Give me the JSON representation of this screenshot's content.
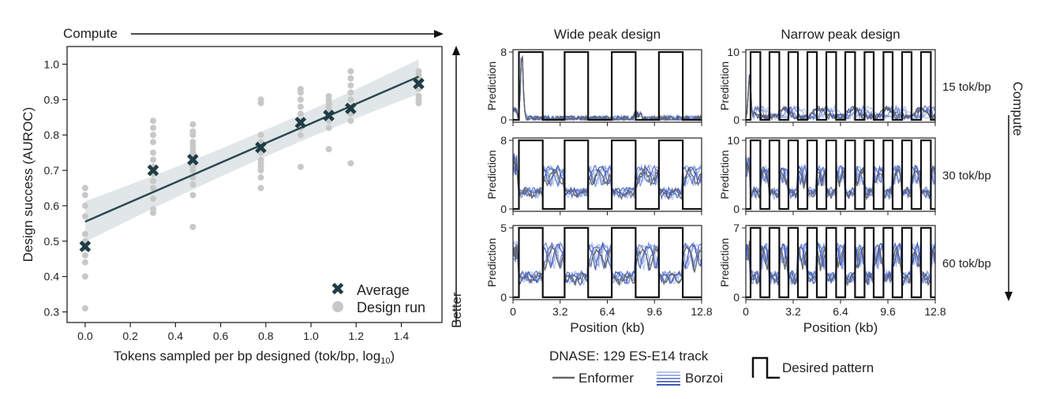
{
  "colors": {
    "average": "#1f3d45",
    "design_run": "#c8c8c8",
    "fit_line": "#2b4a52",
    "fit_band": "#d9e1e3",
    "enformer": "#666666",
    "borzoi": "#5b74c9",
    "desired": "#111111"
  },
  "annotations": {
    "compute_top": "Compute",
    "better": "Better",
    "compute_right": "Compute"
  },
  "chart_data": [
    {
      "type": "scatter",
      "title": "",
      "xlabel": "Tokens sampled per bp designed (tok/bp, log",
      "xlabel_sub": "10",
      "xlabel_end": ")",
      "ylabel": "Design success (AUROC)",
      "xlim": [
        -0.08,
        1.58
      ],
      "ylim": [
        0.27,
        1.05
      ],
      "xticks": [
        "0.0",
        "0.2",
        "0.4",
        "0.6",
        "0.8",
        "1.0",
        "1.2",
        "1.4"
      ],
      "xtick_values": [
        0.0,
        0.2,
        0.4,
        0.6,
        0.8,
        1.0,
        1.2,
        1.4
      ],
      "yticks": [
        "0.3",
        "0.4",
        "0.5",
        "0.6",
        "0.7",
        "0.8",
        "0.9",
        "1.0"
      ],
      "ytick_values": [
        0.3,
        0.4,
        0.5,
        0.6,
        0.7,
        0.8,
        0.9,
        1.0
      ],
      "legend_position": "bottom-right",
      "series": [
        {
          "name": "Average",
          "x": [
            0.0,
            0.301,
            0.477,
            0.778,
            0.954,
            1.079,
            1.176,
            1.477
          ],
          "y": [
            0.485,
            0.7,
            0.73,
            0.765,
            0.835,
            0.855,
            0.875,
            0.945
          ]
        },
        {
          "name": "Design run",
          "points": [
            [
              0.0,
              0.31
            ],
            [
              0.0,
              0.4
            ],
            [
              0.0,
              0.44
            ],
            [
              0.0,
              0.46
            ],
            [
              0.0,
              0.48
            ],
            [
              0.0,
              0.49
            ],
            [
              0.0,
              0.5
            ],
            [
              0.0,
              0.52
            ],
            [
              0.0,
              0.57
            ],
            [
              0.0,
              0.6
            ],
            [
              0.0,
              0.63
            ],
            [
              0.0,
              0.65
            ],
            [
              0.301,
              0.58
            ],
            [
              0.301,
              0.59
            ],
            [
              0.301,
              0.62
            ],
            [
              0.301,
              0.65
            ],
            [
              0.301,
              0.67
            ],
            [
              0.301,
              0.69
            ],
            [
              0.301,
              0.71
            ],
            [
              0.301,
              0.73
            ],
            [
              0.301,
              0.75
            ],
            [
              0.301,
              0.78
            ],
            [
              0.301,
              0.8
            ],
            [
              0.301,
              0.82
            ],
            [
              0.301,
              0.84
            ],
            [
              0.477,
              0.54
            ],
            [
              0.477,
              0.63
            ],
            [
              0.477,
              0.66
            ],
            [
              0.477,
              0.68
            ],
            [
              0.477,
              0.7
            ],
            [
              0.477,
              0.71
            ],
            [
              0.477,
              0.72
            ],
            [
              0.477,
              0.73
            ],
            [
              0.477,
              0.74
            ],
            [
              0.477,
              0.75
            ],
            [
              0.477,
              0.76
            ],
            [
              0.477,
              0.77
            ],
            [
              0.477,
              0.78
            ],
            [
              0.477,
              0.8
            ],
            [
              0.477,
              0.81
            ],
            [
              0.477,
              0.83
            ],
            [
              0.778,
              0.65
            ],
            [
              0.778,
              0.68
            ],
            [
              0.778,
              0.7
            ],
            [
              0.778,
              0.71
            ],
            [
              0.778,
              0.72
            ],
            [
              0.778,
              0.73
            ],
            [
              0.778,
              0.75
            ],
            [
              0.778,
              0.78
            ],
            [
              0.778,
              0.8
            ],
            [
              0.778,
              0.89
            ],
            [
              0.778,
              0.9
            ],
            [
              0.954,
              0.71
            ],
            [
              0.954,
              0.8
            ],
            [
              0.954,
              0.82
            ],
            [
              0.954,
              0.84
            ],
            [
              0.954,
              0.86
            ],
            [
              0.954,
              0.88
            ],
            [
              0.954,
              0.9
            ],
            [
              0.954,
              0.92
            ],
            [
              0.954,
              0.93
            ],
            [
              1.079,
              0.76
            ],
            [
              1.079,
              0.82
            ],
            [
              1.079,
              0.84
            ],
            [
              1.079,
              0.85
            ],
            [
              1.079,
              0.86
            ],
            [
              1.079,
              0.87
            ],
            [
              1.079,
              0.88
            ],
            [
              1.079,
              0.89
            ],
            [
              1.079,
              0.9
            ],
            [
              1.079,
              0.91
            ],
            [
              1.176,
              0.72
            ],
            [
              1.176,
              0.84
            ],
            [
              1.176,
              0.86
            ],
            [
              1.176,
              0.88
            ],
            [
              1.176,
              0.9
            ],
            [
              1.176,
              0.92
            ],
            [
              1.176,
              0.94
            ],
            [
              1.176,
              0.96
            ],
            [
              1.176,
              0.98
            ],
            [
              1.477,
              0.89
            ],
            [
              1.477,
              0.9
            ],
            [
              1.477,
              0.91
            ],
            [
              1.477,
              0.93
            ],
            [
              1.477,
              0.95
            ],
            [
              1.477,
              0.96
            ],
            [
              1.477,
              0.97
            ],
            [
              1.477,
              0.98
            ]
          ]
        }
      ],
      "fit_line": {
        "x": [
          0.0,
          1.477
        ],
        "y": [
          0.555,
          0.965
        ]
      }
    },
    {
      "type": "line",
      "panel_titles": [
        "Wide peak design",
        "Narrow peak design"
      ],
      "row_labels": [
        "15 tok/bp",
        "30 tok/bp",
        "60 tok/bp"
      ],
      "ylabel": "Prediction",
      "xlabel": "Position (kb)",
      "xlim": [
        0,
        12.8
      ],
      "xticks": [
        "0",
        "3.2",
        "6.4",
        "9.6",
        "12.8"
      ],
      "xtick_values": [
        0,
        3.2,
        6.4,
        9.6,
        12.8
      ],
      "ymax_by_row": {
        "wide": [
          8,
          8,
          5
        ],
        "narrow": [
          10,
          10,
          7
        ]
      },
      "desired_pattern": {
        "wide": {
          "peak_starts": [
            0.4,
            3.5,
            6.7,
            9.9
          ],
          "peak_width": 1.6
        },
        "narrow": {
          "period": 1.28,
          "peak_width": 0.64,
          "start": 0.32
        }
      },
      "legend": {
        "track_label": "DNASE: 129 ES-E14 track",
        "enformer": "Enformer",
        "borzoi": "Borzoi",
        "desired": "Desired pattern"
      }
    }
  ]
}
